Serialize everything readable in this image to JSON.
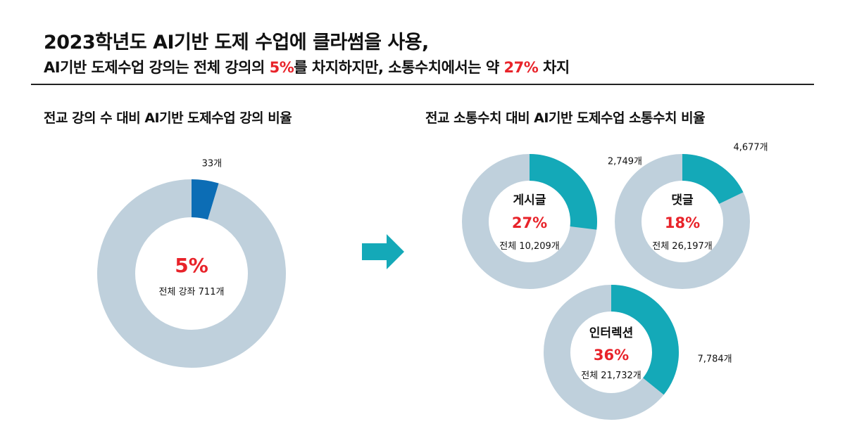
{
  "header": {
    "line1": "2023학년도 AI기반 도제 수업에 클라썸을 사용,",
    "line2_a": "AI기반 도제수업 강의는 전체 강의의 ",
    "line2_pct1": "5%",
    "line2_b": "를 차지하지만, 소통수치에서는 약 ",
    "line2_pct2": "27%",
    "line2_c": " 차지"
  },
  "left_title": "전교 강의 수 대비 AI기반 도제수업 강의 비율",
  "right_title": "전교 소통수치 대비 AI기반 도제수업 소통수치 비율",
  "colors": {
    "track": "#bfd0dc",
    "left_fill": "#0c6db5",
    "right_fill": "#14a9b8",
    "arrow": "#14a9b8",
    "pct": "#e8232a"
  },
  "chart_data": [
    {
      "type": "pie",
      "name": "lectures",
      "title": "전교 강의 수 대비 AI기반 도제수업 강의 비율",
      "value": 33,
      "total": 711,
      "value_label": "33개",
      "pct_label": "5%",
      "total_label": "전체 강좌 711개"
    },
    {
      "type": "pie",
      "name": "posts",
      "title": "게시글",
      "value": 2749,
      "total": 10209,
      "value_label": "2,749개",
      "pct_label": "27%",
      "total_label": "전체 10,209개"
    },
    {
      "type": "pie",
      "name": "comments",
      "title": "댓글",
      "value": 4677,
      "total": 26197,
      "value_label": "4,677개",
      "pct_label": "18%",
      "total_label": "전체 26,197개"
    },
    {
      "type": "pie",
      "name": "interactions",
      "title": "인터렉션",
      "value": 7784,
      "total": 21732,
      "value_label": "7,784개",
      "pct_label": "36%",
      "total_label": "전체 21,732개"
    }
  ]
}
